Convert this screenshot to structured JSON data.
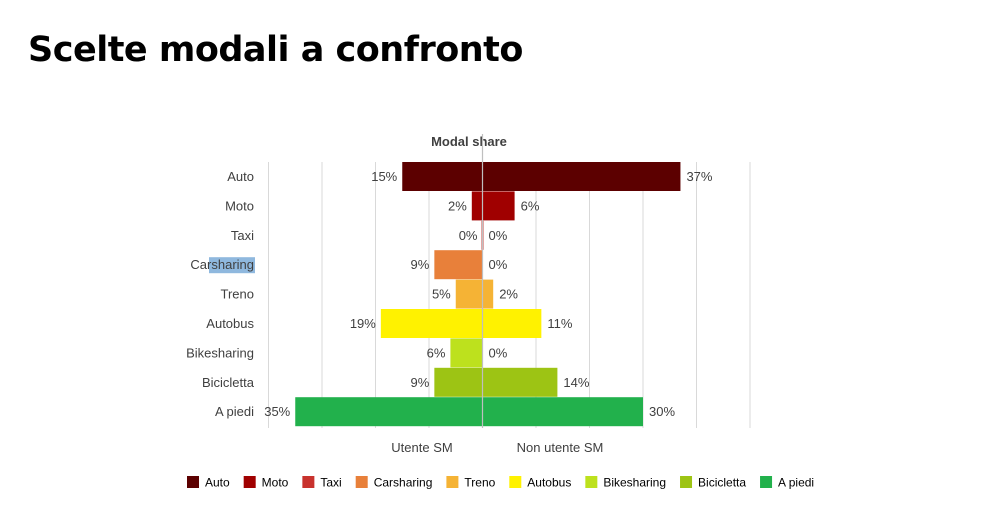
{
  "slide": {
    "title": "Scelte modali a confronto"
  },
  "chart_data": {
    "type": "bar",
    "orientation": "horizontal-diverging",
    "title": "Modal share",
    "categories": [
      "Auto",
      "Moto",
      "Taxi",
      "Carsharing",
      "Treno",
      "Autobus",
      "Bikesharing",
      "Bicicletta",
      "A piedi"
    ],
    "colors": [
      "#5c0000",
      "#a00000",
      "#c8322d",
      "#e8803a",
      "#f5b335",
      "#fff200",
      "#bde11d",
      "#9dc414",
      "#22b14c"
    ],
    "series": [
      {
        "name": "Utente SM",
        "side": "left",
        "values": [
          15,
          2,
          0,
          9,
          5,
          19,
          6,
          9,
          35
        ],
        "labels": [
          "15%",
          "2%",
          "0%",
          "9%",
          "5%",
          "19%",
          "6%",
          "9%",
          "35%"
        ]
      },
      {
        "name": "Non utente SM",
        "side": "right",
        "values": [
          37,
          6,
          0,
          0,
          2,
          11,
          0,
          14,
          30
        ],
        "labels": [
          "37%",
          "6%",
          "0%",
          "0%",
          "2%",
          "11%",
          "0%",
          "14%",
          "30%"
        ]
      }
    ],
    "legend": {
      "position": "bottom",
      "items": [
        "Auto",
        "Moto",
        "Taxi",
        "Carsharing",
        "Treno",
        "Autobus",
        "Bikesharing",
        "Bicicletta",
        "A piedi"
      ]
    },
    "grid": true,
    "highlight_color": "#8fb8de",
    "text_color": "#404040",
    "grid_color": "#d9d9d9"
  }
}
